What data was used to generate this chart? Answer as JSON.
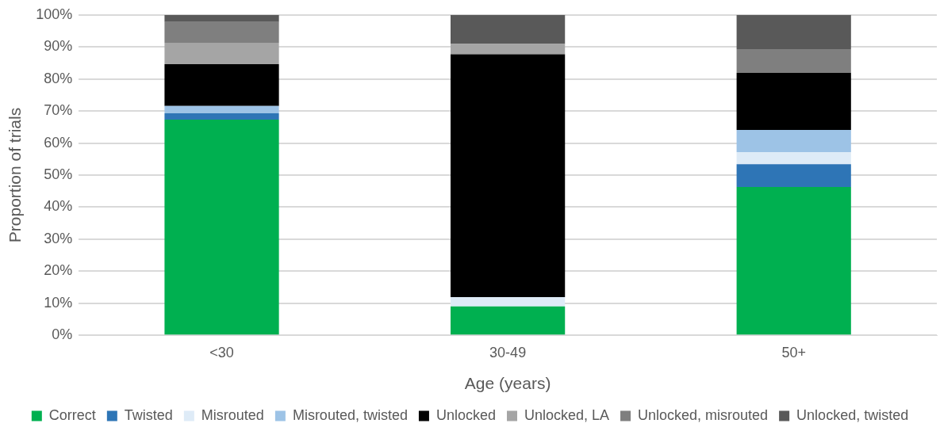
{
  "chart_data": {
    "type": "bar",
    "stacked": true,
    "xlabel": "Age (years)",
    "ylabel": "Proportion of trials",
    "categories": [
      "<30",
      "30-49",
      "50+"
    ],
    "series": [
      {
        "name": "Correct",
        "color": "#00b050",
        "values": [
          67.3,
          9.0,
          46.3
        ]
      },
      {
        "name": "Twisted",
        "color": "#2e75b6",
        "values": [
          2.0,
          0,
          7.1
        ]
      },
      {
        "name": "Misrouted",
        "color": "#deebf7",
        "values": [
          0,
          2.9,
          3.8
        ]
      },
      {
        "name": "Misrouted, twisted",
        "color": "#9dc3e6",
        "values": [
          2.3,
          0,
          6.9
        ]
      },
      {
        "name": "Unlocked",
        "color": "#000000",
        "values": [
          13.0,
          75.8,
          17.8
        ]
      },
      {
        "name": "Unlocked, LA",
        "color": "#a5a5a5",
        "values": [
          6.7,
          3.2,
          0
        ]
      },
      {
        "name": "Unlocked, misrouted",
        "color": "#7f7f7f",
        "values": [
          6.5,
          0,
          7.4
        ]
      },
      {
        "name": "Unlocked, twisted",
        "color": "#595959",
        "values": [
          2.2,
          9.1,
          10.7
        ]
      }
    ],
    "ylim": [
      0,
      100
    ],
    "yticks": [
      {
        "value": 0,
        "label": "0%"
      },
      {
        "value": 10,
        "label": "10%"
      },
      {
        "value": 20,
        "label": "20%"
      },
      {
        "value": 30,
        "label": "30%"
      },
      {
        "value": 40,
        "label": "40%"
      },
      {
        "value": 50,
        "label": "50%"
      },
      {
        "value": 60,
        "label": "60%"
      },
      {
        "value": 70,
        "label": "70%"
      },
      {
        "value": 80,
        "label": "80%"
      },
      {
        "value": 90,
        "label": "90%"
      },
      {
        "value": 100,
        "label": "100%"
      }
    ],
    "grid": "y",
    "legend": "bottom"
  }
}
